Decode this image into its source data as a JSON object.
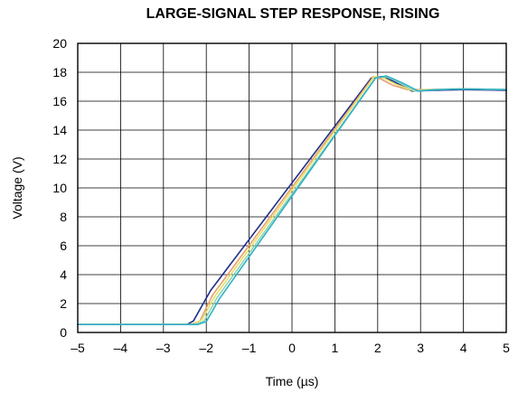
{
  "chart_data": {
    "type": "line",
    "title": "LARGE-SIGNAL STEP RESPONSE, RISING",
    "xlabel": "Time (µs)",
    "ylabel": "Voltage (V)",
    "xlim": [
      -5,
      5
    ],
    "ylim": [
      0,
      20
    ],
    "x_ticks": [
      -5,
      -4,
      -3,
      -2,
      -1,
      0,
      1,
      2,
      3,
      4,
      5
    ],
    "x_tick_labels": [
      "–5",
      "–4",
      "–3",
      "–2",
      "–1",
      "0",
      "1",
      "2",
      "3",
      "4",
      "5"
    ],
    "y_ticks": [
      0,
      2,
      4,
      6,
      8,
      10,
      12,
      14,
      16,
      18,
      20
    ],
    "y_tick_labels": [
      "0",
      "2",
      "4",
      "6",
      "8",
      "10",
      "12",
      "14",
      "16",
      "18",
      "20"
    ],
    "grid": true,
    "legend": "none",
    "series": [
      {
        "color": "#1f2f8a",
        "x": [
          -5,
          -2.45,
          -2.3,
          -1.9,
          1.85,
          2.1,
          2.35,
          2.8,
          3.3,
          4,
          5
        ],
        "y": [
          0.55,
          0.55,
          0.8,
          2.9,
          17.6,
          17.7,
          17.4,
          16.7,
          16.75,
          16.8,
          16.75
        ]
      },
      {
        "color": "#e8a070",
        "x": [
          -5,
          -2.35,
          -2.15,
          -1.85,
          1.9,
          2.1,
          2.35,
          2.7,
          3.1,
          4,
          5
        ],
        "y": [
          0.55,
          0.55,
          0.8,
          2.6,
          17.7,
          17.5,
          17.1,
          16.8,
          16.8,
          16.85,
          16.8
        ]
      },
      {
        "color": "#e6df6a",
        "x": [
          -5,
          -2.3,
          -2.1,
          -1.8,
          1.92,
          2.15,
          2.4,
          2.8,
          3.2,
          4,
          5
        ],
        "y": [
          0.55,
          0.55,
          0.9,
          2.5,
          17.7,
          17.6,
          17.2,
          16.75,
          16.8,
          16.85,
          16.8
        ]
      },
      {
        "color": "#8fd4b0",
        "x": [
          -5,
          -2.25,
          -2.05,
          -1.75,
          1.95,
          2.2,
          2.5,
          2.85,
          3.3,
          4,
          5
        ],
        "y": [
          0.55,
          0.55,
          0.8,
          2.4,
          17.6,
          17.7,
          17.3,
          16.7,
          16.8,
          16.85,
          16.8
        ]
      },
      {
        "color": "#2fb0c8",
        "x": [
          -5,
          -2.2,
          -2.0,
          -1.7,
          1.95,
          2.2,
          2.55,
          2.95,
          3.4,
          4,
          5
        ],
        "y": [
          0.55,
          0.55,
          0.75,
          2.3,
          17.6,
          17.75,
          17.3,
          16.7,
          16.8,
          16.85,
          16.8
        ]
      }
    ]
  }
}
